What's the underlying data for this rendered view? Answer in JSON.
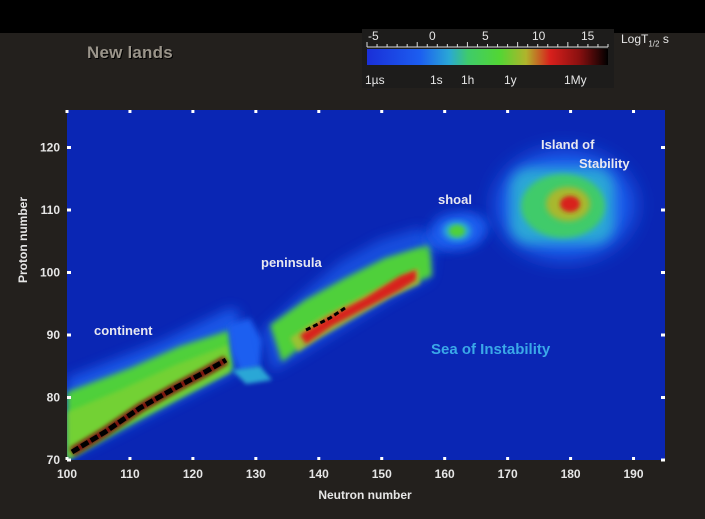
{
  "page_title": "New lands",
  "colorbar": {
    "title": "LogT",
    "title_sub": "1/2",
    "title_unit": "s",
    "upper_ticks": [
      "-5",
      "0",
      "5",
      "10",
      "15"
    ],
    "lower_ticks": [
      "1µs",
      "1s",
      "1h",
      "1y",
      "1My"
    ],
    "colors": [
      "#1a2fd8",
      "#1c5ef0",
      "#2aa7d6",
      "#3fcb6a",
      "#52d634",
      "#b0b42c",
      "#d8201c",
      "#8a1010",
      "#000000"
    ]
  },
  "chart_data": {
    "type": "heatmap",
    "title": "",
    "xlabel": "Neutron number",
    "ylabel": "Proton number",
    "xlim": [
      100,
      195
    ],
    "ylim": [
      70,
      126
    ],
    "xticks": [
      100,
      110,
      120,
      130,
      140,
      150,
      160,
      170,
      180,
      190
    ],
    "yticks": [
      70,
      80,
      90,
      100,
      110,
      120
    ],
    "grid": false,
    "value": "log10 half-life (s)",
    "background_color": "#0a26b4",
    "regions": [
      {
        "name": "continent",
        "label_at": [
          104,
          90
        ]
      },
      {
        "name": "peninsula",
        "label_at": [
          135,
          101.5
        ]
      },
      {
        "name": "shoal",
        "label_at": [
          160,
          110.5
        ]
      },
      {
        "name": "Island of Stability",
        "label_at": [
          180,
          114
        ]
      },
      {
        "name": "Sea of Instability",
        "label_at": [
          160,
          88
        ]
      }
    ]
  },
  "region_labels": {
    "continent": "continent",
    "peninsula": "peninsula",
    "shoal": "shoal",
    "island_line1": "Island of",
    "island_line2": "Stability",
    "sea": "Sea of Instability"
  }
}
